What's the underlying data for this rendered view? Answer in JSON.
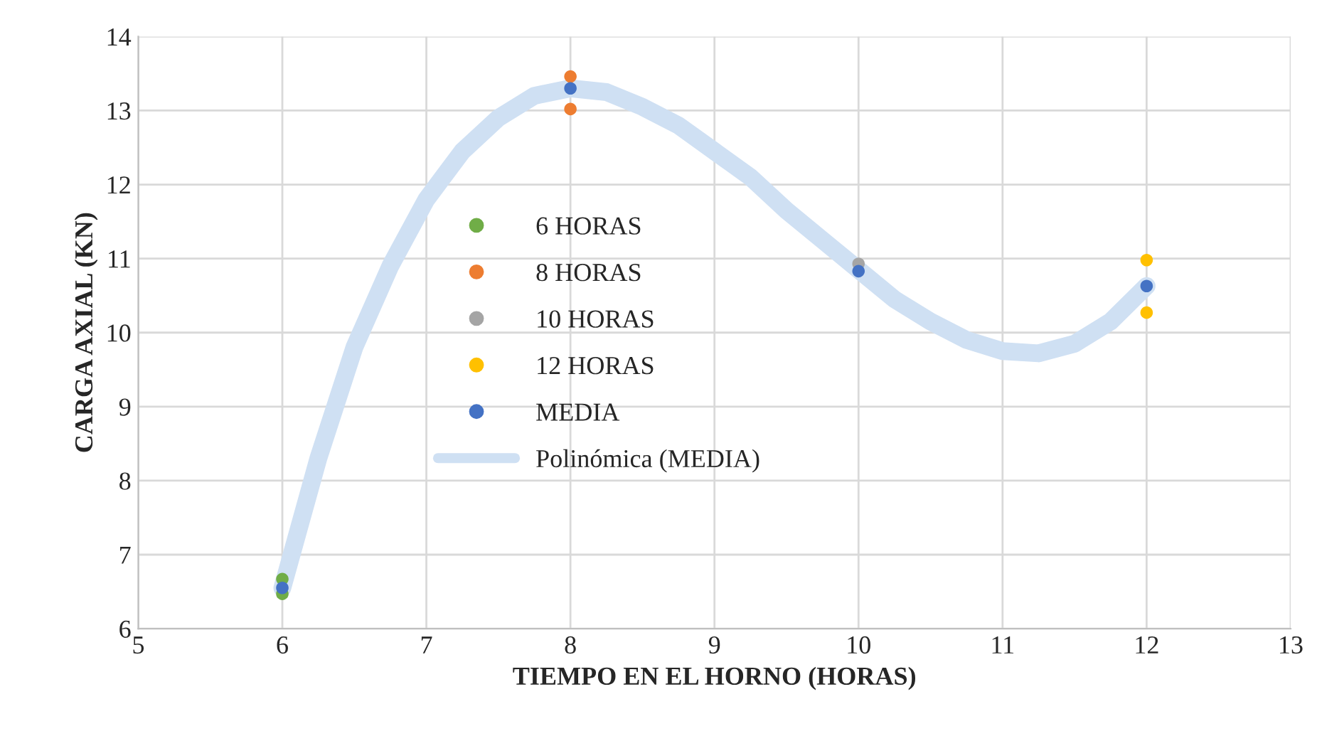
{
  "chart_data": {
    "type": "scatter",
    "xlabel": "TIEMPO EN EL HORNO (HORAS)",
    "ylabel": "CARGA AXIAL (KN)",
    "xlim": [
      5,
      13
    ],
    "xticks": [
      5,
      6,
      7,
      8,
      9,
      10,
      11,
      12,
      13
    ],
    "ylim": [
      6,
      14
    ],
    "yticks": [
      6,
      7,
      8,
      9,
      10,
      11,
      12,
      13,
      14
    ],
    "grid": true,
    "legend": "left",
    "series": [
      {
        "name": "6 HORAS",
        "color": "#70ad47",
        "x": [
          6,
          6
        ],
        "values": [
          6.67,
          6.47
        ],
        "marker": "circle"
      },
      {
        "name": "8 HORAS",
        "color": "#ed7d31",
        "x": [
          8,
          8
        ],
        "values": [
          13.46,
          13.02
        ],
        "marker": "circle"
      },
      {
        "name": "10 HORAS",
        "color": "#a5a5a5",
        "x": [
          10
        ],
        "values": [
          10.93
        ],
        "marker": "circle"
      },
      {
        "name": "12 HORAS",
        "color": "#ffc000",
        "x": [
          12,
          12
        ],
        "values": [
          10.98,
          10.27
        ],
        "marker": "circle"
      },
      {
        "name": "MEDIA",
        "color": "#4472c4",
        "x": [
          6,
          8,
          10,
          12
        ],
        "values": [
          6.55,
          13.3,
          10.83,
          10.63
        ],
        "marker": "circle"
      },
      {
        "name": "Polinómica (MEDIA)",
        "type": "line",
        "color": "#cfe0f3",
        "line_style": "solid",
        "marker": "none",
        "x": [
          6,
          6.25,
          6.5,
          6.75,
          7,
          7.25,
          7.5,
          7.75,
          8,
          8.25,
          8.5,
          8.75,
          9,
          9.25,
          9.5,
          9.75,
          10,
          10.25,
          10.5,
          10.75,
          11,
          11.25,
          11.5,
          11.75,
          12
        ],
        "values": [
          6.55,
          8.3,
          9.8,
          10.9,
          11.8,
          12.45,
          12.9,
          13.2,
          13.3,
          13.25,
          13.05,
          12.8,
          12.45,
          12.1,
          11.65,
          11.25,
          10.85,
          10.45,
          10.15,
          9.9,
          9.75,
          9.72,
          9.85,
          10.15,
          10.63
        ]
      }
    ]
  }
}
